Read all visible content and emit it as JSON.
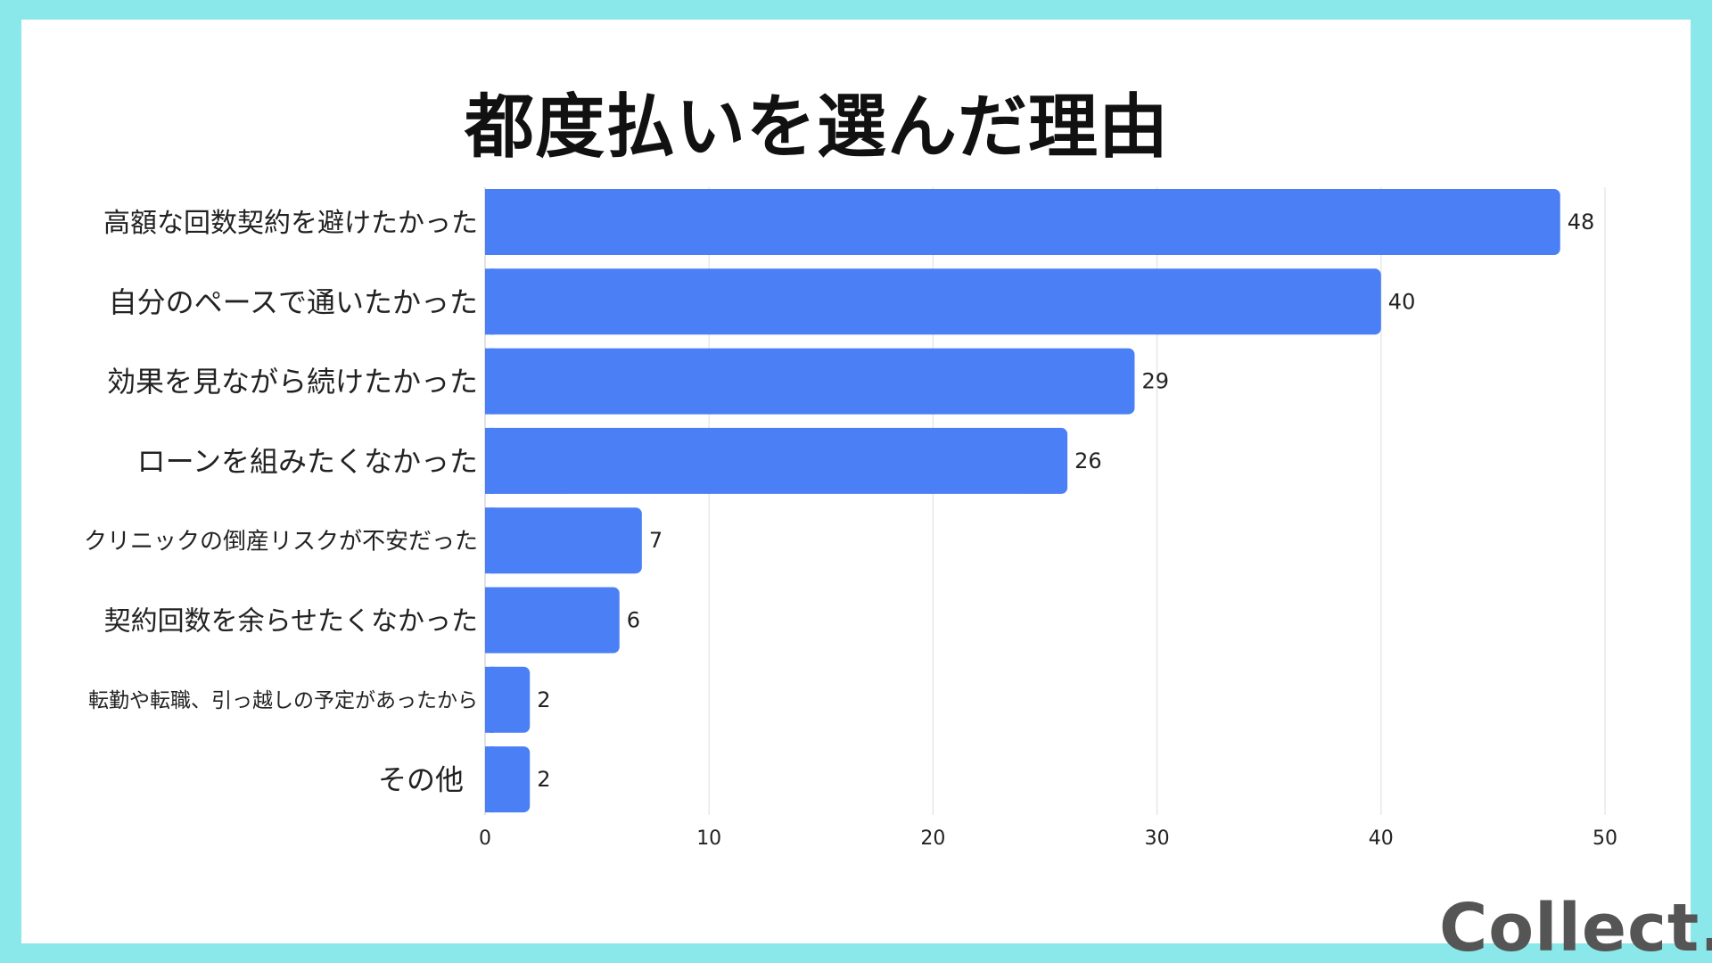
{
  "colors": {
    "frame": "#8ae8ea",
    "background": "#ffffff",
    "bar": "#4a7ff5",
    "grid": "#e2e2e2",
    "text": "#222222",
    "logo": "#555555"
  },
  "brand": {
    "logo_text": "Collect."
  },
  "chart_data": {
    "type": "bar",
    "orientation": "horizontal",
    "title": "都度払いを選んだ理由",
    "categories": [
      "高額な回数契約を避けたかった",
      "自分のペースで通いたかった",
      "効果を見ながら続けたかった",
      "ローンを組みたくなかった",
      "クリニックの倒産リスクが不安だった",
      "契約回数を余らせたくなかった",
      "転勤や転職、引っ越しの予定があったから",
      "その他"
    ],
    "values": [
      48,
      40,
      29,
      26,
      7,
      6,
      2,
      2
    ],
    "xlim": [
      0,
      50
    ],
    "xticks": [
      0,
      10,
      20,
      30,
      40,
      50
    ],
    "xlabel": "",
    "ylabel": "",
    "grid": "vertical",
    "legend": "none",
    "data_labels": true
  }
}
